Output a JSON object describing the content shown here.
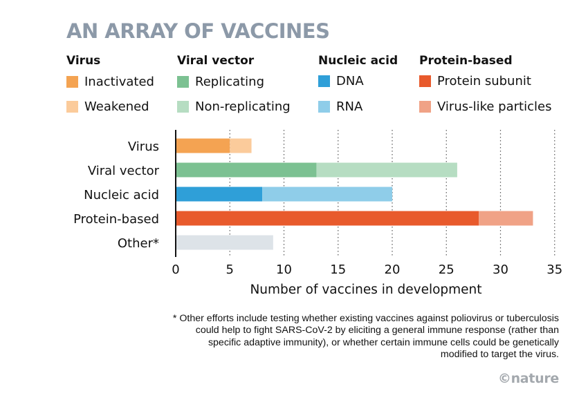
{
  "title": "AN ARRAY OF VACCINES",
  "legend": [
    {
      "heading": "Virus",
      "items": [
        {
          "label": "Inactivated",
          "color": "#f4a352"
        },
        {
          "label": "Weakened",
          "color": "#fbcb9b"
        }
      ]
    },
    {
      "heading": "Viral vector",
      "items": [
        {
          "label": "Replicating",
          "color": "#7cc192"
        },
        {
          "label": "Non-replicating",
          "color": "#b6ddc2"
        }
      ]
    },
    {
      "heading": "Nucleic acid",
      "items": [
        {
          "label": "DNA",
          "color": "#2f9fd8"
        },
        {
          "label": "RNA",
          "color": "#8fcde9"
        }
      ]
    },
    {
      "heading": "Protein-based",
      "items": [
        {
          "label": "Protein subunit",
          "color": "#e85a2c"
        },
        {
          "label": "Virus-like particles",
          "color": "#f0a286"
        }
      ]
    }
  ],
  "chart_data": {
    "type": "bar",
    "orientation": "horizontal",
    "stacked": true,
    "categories": [
      "Virus",
      "Viral vector",
      "Nucleic acid",
      "Protein-based",
      "Other*"
    ],
    "segments": [
      [
        {
          "name": "Inactivated",
          "value": 5,
          "color": "#f4a352"
        },
        {
          "name": "Weakened",
          "value": 2,
          "color": "#fbcb9b"
        }
      ],
      [
        {
          "name": "Replicating",
          "value": 13,
          "color": "#7cc192"
        },
        {
          "name": "Non-replicating",
          "value": 13,
          "color": "#b6ddc2"
        }
      ],
      [
        {
          "name": "DNA",
          "value": 8,
          "color": "#2f9fd8"
        },
        {
          "name": "RNA",
          "value": 12,
          "color": "#8fcde9"
        }
      ],
      [
        {
          "name": "Protein subunit",
          "value": 28,
          "color": "#e85a2c"
        },
        {
          "name": "Virus-like particles",
          "value": 5,
          "color": "#f0a286"
        }
      ],
      [
        {
          "name": "Other",
          "value": 9,
          "color": "#dde3e8"
        }
      ]
    ],
    "xlabel": "Number of vaccines in development",
    "xlim": [
      0,
      35
    ],
    "xticks": [
      "0",
      "5",
      "10",
      "15",
      "20",
      "25",
      "30",
      "35"
    ],
    "grid": "vertical dotted"
  },
  "footnote": "* Other efforts include testing whether existing vaccines against poliovirus or tuberculosis could help to fight SARS-CoV-2 by eliciting a general immune response (rather than specific adaptive immunity), or whether certain immune cells could be genetically modified to target the virus.",
  "credit": "©nature"
}
